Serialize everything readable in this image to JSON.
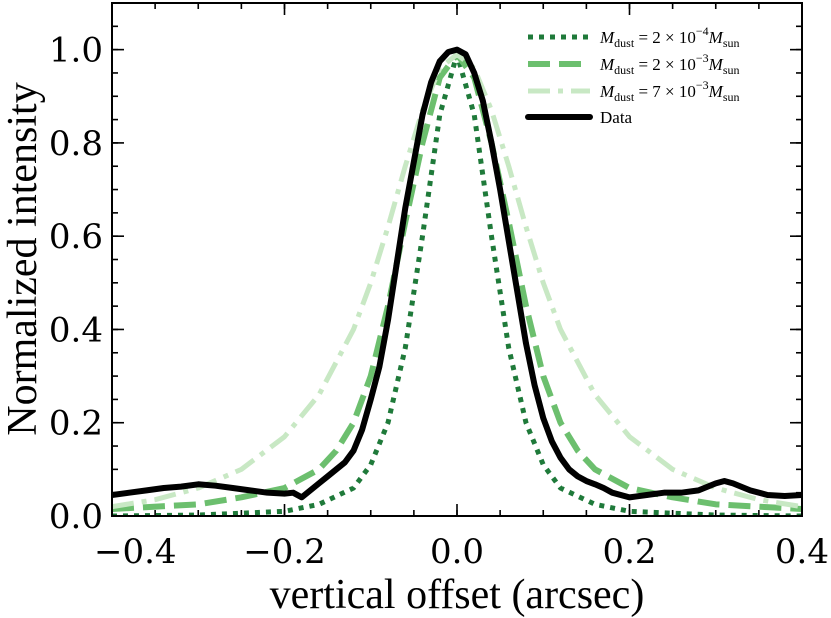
{
  "chart_data": {
    "type": "line",
    "xlabel": "vertical offset (arcsec)",
    "ylabel": "Normalized intensity",
    "xlim": [
      -0.4,
      0.4
    ],
    "ylim": [
      0.0,
      1.1
    ],
    "x_ticks": [
      -0.4,
      -0.2,
      0.0,
      0.2,
      0.4
    ],
    "x_tick_labels": [
      "−0.4",
      "−0.2",
      "0.0",
      "0.2",
      "0.4"
    ],
    "y_ticks": [
      0.0,
      0.2,
      0.4,
      0.6,
      0.8,
      1.0
    ],
    "y_tick_labels": [
      "0.0",
      "0.2",
      "0.4",
      "0.6",
      "0.8",
      "1.0"
    ],
    "legend_position": "top-right",
    "series": [
      {
        "name": "M_dust = 2×10^-4 M_sun",
        "legend": {
          "m": "M",
          "dust": "dust",
          "eq": " = 2 × 10",
          "exp": "−4",
          "m2": "M",
          "sun": "sun"
        },
        "color": "#1f7a3a",
        "style": "dotted",
        "x": [
          -0.4,
          -0.3,
          -0.2,
          -0.16,
          -0.12,
          -0.1,
          -0.08,
          -0.06,
          -0.04,
          -0.02,
          0.0,
          0.02,
          0.04,
          0.06,
          0.08,
          0.1,
          0.12,
          0.16,
          0.2,
          0.3,
          0.4
        ],
        "y": [
          0.0,
          0.002,
          0.01,
          0.025,
          0.06,
          0.11,
          0.2,
          0.36,
          0.6,
          0.86,
          0.99,
          0.86,
          0.6,
          0.36,
          0.2,
          0.11,
          0.06,
          0.025,
          0.01,
          0.002,
          0.0
        ]
      },
      {
        "name": "M_dust = 2×10^-3 M_sun",
        "legend": {
          "m": "M",
          "dust": "dust",
          "eq": " = 2 × 10",
          "exp": "−3",
          "m2": "M",
          "sun": "sun"
        },
        "color": "#6cbf6e",
        "style": "dashed",
        "x": [
          -0.4,
          -0.3,
          -0.25,
          -0.2,
          -0.16,
          -0.14,
          -0.12,
          -0.1,
          -0.08,
          -0.06,
          -0.04,
          -0.02,
          0.0,
          0.02,
          0.04,
          0.06,
          0.08,
          0.1,
          0.12,
          0.14,
          0.16,
          0.2,
          0.25,
          0.3,
          0.4
        ],
        "y": [
          0.015,
          0.025,
          0.04,
          0.06,
          0.1,
          0.14,
          0.2,
          0.3,
          0.45,
          0.63,
          0.8,
          0.94,
          0.99,
          0.94,
          0.8,
          0.63,
          0.45,
          0.3,
          0.2,
          0.14,
          0.1,
          0.06,
          0.04,
          0.025,
          0.015
        ]
      },
      {
        "name": "M_dust = 7×10^-3 M_sun",
        "legend": {
          "m": "M",
          "dust": "dust",
          "eq": " = 7 × 10",
          "exp": "−3",
          "m2": "M",
          "sun": "sun"
        },
        "color": "#c8e8c4",
        "style": "dashdot",
        "x": [
          -0.4,
          -0.35,
          -0.3,
          -0.25,
          -0.2,
          -0.16,
          -0.12,
          -0.1,
          -0.08,
          -0.06,
          -0.04,
          -0.02,
          0.0,
          0.02,
          0.04,
          0.06,
          0.08,
          0.1,
          0.12,
          0.16,
          0.2,
          0.25,
          0.3,
          0.35,
          0.4
        ],
        "y": [
          0.02,
          0.035,
          0.06,
          0.1,
          0.17,
          0.26,
          0.4,
          0.5,
          0.62,
          0.75,
          0.87,
          0.96,
          0.99,
          0.96,
          0.87,
          0.75,
          0.62,
          0.5,
          0.4,
          0.26,
          0.17,
          0.1,
          0.06,
          0.035,
          0.02
        ]
      },
      {
        "name": "Data",
        "legend": {
          "text": "Data"
        },
        "color": "#000000",
        "style": "solid",
        "x": [
          -0.4,
          -0.38,
          -0.36,
          -0.34,
          -0.32,
          -0.3,
          -0.28,
          -0.26,
          -0.24,
          -0.22,
          -0.2,
          -0.19,
          -0.18,
          -0.17,
          -0.16,
          -0.15,
          -0.14,
          -0.13,
          -0.12,
          -0.11,
          -0.1,
          -0.09,
          -0.08,
          -0.07,
          -0.06,
          -0.05,
          -0.04,
          -0.03,
          -0.02,
          -0.01,
          0.0,
          0.01,
          0.02,
          0.03,
          0.04,
          0.05,
          0.06,
          0.07,
          0.08,
          0.09,
          0.1,
          0.11,
          0.12,
          0.13,
          0.14,
          0.15,
          0.16,
          0.17,
          0.18,
          0.2,
          0.22,
          0.24,
          0.26,
          0.28,
          0.3,
          0.31,
          0.32,
          0.34,
          0.36,
          0.38,
          0.4
        ],
        "y": [
          0.045,
          0.05,
          0.055,
          0.06,
          0.063,
          0.068,
          0.065,
          0.06,
          0.055,
          0.05,
          0.048,
          0.05,
          0.04,
          0.055,
          0.07,
          0.085,
          0.1,
          0.115,
          0.14,
          0.185,
          0.25,
          0.32,
          0.42,
          0.54,
          0.66,
          0.76,
          0.86,
          0.93,
          0.975,
          0.995,
          1.0,
          0.99,
          0.95,
          0.89,
          0.8,
          0.7,
          0.59,
          0.48,
          0.37,
          0.28,
          0.21,
          0.16,
          0.125,
          0.1,
          0.085,
          0.075,
          0.068,
          0.06,
          0.05,
          0.04,
          0.045,
          0.05,
          0.05,
          0.055,
          0.07,
          0.075,
          0.07,
          0.055,
          0.045,
          0.043,
          0.045
        ]
      }
    ]
  }
}
